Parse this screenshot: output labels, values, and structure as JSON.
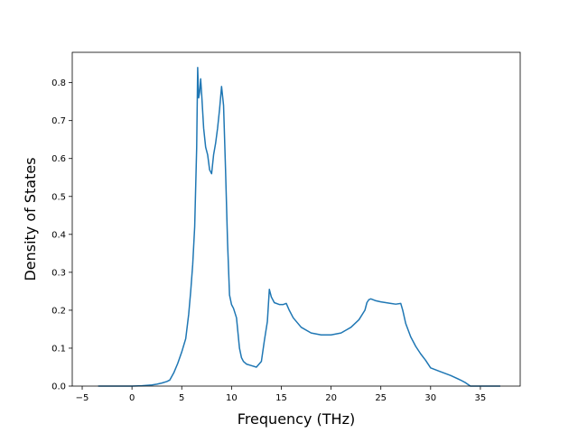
{
  "chart_data": {
    "type": "line",
    "title": "",
    "xlabel": "Frequency (THz)",
    "ylabel": "Density of States",
    "xlim": [
      -6.0,
      39.0
    ],
    "ylim": [
      0.0,
      0.88
    ],
    "xticks": [
      -5,
      0,
      5,
      10,
      15,
      20,
      25,
      30,
      35
    ],
    "xtick_labels": [
      "−5",
      "0",
      "5",
      "10",
      "15",
      "20",
      "25",
      "30",
      "35"
    ],
    "yticks": [
      0.0,
      0.1,
      0.2,
      0.3,
      0.4,
      0.5,
      0.6,
      0.7,
      0.8
    ],
    "ytick_labels": [
      "0.0",
      "0.1",
      "0.2",
      "0.3",
      "0.4",
      "0.5",
      "0.6",
      "0.7",
      "0.8"
    ],
    "grid": false,
    "legend": "none",
    "colors": {
      "line": "#1f77b4"
    },
    "series": [
      {
        "x": [
          -3.4,
          -2.0,
          0.0,
          1.0,
          2.0,
          2.5,
          3.0,
          3.5,
          3.8,
          4.2,
          4.6,
          5.0,
          5.4,
          5.7,
          5.9,
          6.1,
          6.3,
          6.5,
          6.6,
          6.7,
          6.8,
          6.9,
          7.0,
          7.2,
          7.4,
          7.6,
          7.8,
          8.0,
          8.2,
          8.4,
          8.6,
          8.8,
          9.0,
          9.2,
          9.4,
          9.6,
          9.8,
          10.0,
          10.2,
          10.5,
          10.8,
          11.0,
          11.2,
          11.5,
          12.0,
          12.5,
          13.0,
          13.3,
          13.6,
          13.8,
          14.0,
          14.3,
          14.8,
          15.2,
          15.5,
          15.8,
          16.2,
          17.0,
          18.0,
          19.0,
          20.0,
          21.0,
          22.0,
          22.8,
          23.4,
          23.6,
          23.8,
          24.0,
          24.5,
          25.0,
          26.0,
          26.5,
          27.0,
          27.2,
          27.5,
          28.0,
          28.5,
          29.0,
          29.5,
          30.0,
          31.0,
          32.0,
          33.0,
          33.5,
          34.0,
          35.5,
          37.0
        ],
        "y": [
          0.0,
          0.0,
          0.0,
          0.001,
          0.003,
          0.005,
          0.008,
          0.012,
          0.016,
          0.035,
          0.06,
          0.09,
          0.125,
          0.19,
          0.25,
          0.32,
          0.42,
          0.63,
          0.84,
          0.76,
          0.775,
          0.81,
          0.77,
          0.68,
          0.63,
          0.61,
          0.57,
          0.56,
          0.61,
          0.64,
          0.68,
          0.73,
          0.79,
          0.74,
          0.57,
          0.38,
          0.24,
          0.215,
          0.205,
          0.18,
          0.1,
          0.075,
          0.065,
          0.058,
          0.054,
          0.05,
          0.065,
          0.12,
          0.17,
          0.255,
          0.235,
          0.22,
          0.215,
          0.215,
          0.218,
          0.2,
          0.18,
          0.155,
          0.14,
          0.135,
          0.135,
          0.14,
          0.155,
          0.175,
          0.2,
          0.22,
          0.228,
          0.23,
          0.225,
          0.222,
          0.218,
          0.216,
          0.218,
          0.2,
          0.165,
          0.13,
          0.105,
          0.085,
          0.068,
          0.048,
          0.038,
          0.028,
          0.016,
          0.009,
          0.0,
          0.0,
          0.0
        ]
      }
    ]
  }
}
